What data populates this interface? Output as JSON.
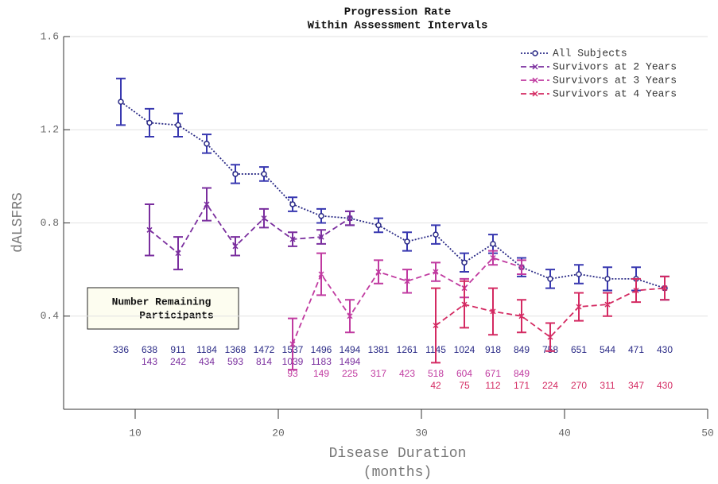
{
  "chart_data": {
    "type": "line",
    "title": [
      "Progression Rate",
      "Within Assessment Intervals"
    ],
    "ylabel": "dALSFRS",
    "xlabel": [
      "Disease Duration",
      "(months)"
    ],
    "annotation": [
      "Number Remaining",
      "Participants"
    ],
    "xlim": [
      5,
      50
    ],
    "xticks": [
      10,
      20,
      30,
      40,
      50
    ],
    "ylim": [
      0,
      1.6
    ],
    "yticks": [
      0.4,
      0.8,
      1.2,
      1.6
    ],
    "grid": true,
    "legend": "upper right",
    "series": [
      {
        "name": "All Subjects",
        "color": "#2a2a86",
        "error_color": "#3838b0",
        "line_style": "dotted",
        "marker": "o",
        "x": [
          9,
          11,
          13,
          15,
          17,
          19,
          21,
          23,
          25,
          27,
          29,
          31,
          33,
          35,
          37,
          39,
          41,
          43,
          45,
          47
        ],
        "values": [
          1.32,
          1.23,
          1.22,
          1.14,
          1.01,
          1.01,
          0.88,
          0.83,
          0.82,
          0.79,
          0.72,
          0.75,
          0.63,
          0.71,
          0.61,
          0.56,
          0.58,
          0.56,
          0.56,
          0.52
        ],
        "errors": [
          0.1,
          0.06,
          0.05,
          0.04,
          0.04,
          0.03,
          0.03,
          0.03,
          0.03,
          0.03,
          0.04,
          0.04,
          0.04,
          0.04,
          0.04,
          0.04,
          0.04,
          0.05,
          0.05,
          0.05
        ],
        "counts": [
          336,
          638,
          911,
          1184,
          1368,
          1472,
          1537,
          1496,
          1494,
          1381,
          1261,
          1145,
          1024,
          918,
          849,
          758,
          651,
          544,
          471,
          430
        ]
      },
      {
        "name": "Survivors at 2 Years",
        "color": "#7a2e9e",
        "error_color": "#7a2e9e",
        "line_style": "dashed",
        "marker": "x",
        "x": [
          11,
          13,
          15,
          17,
          19,
          21,
          23,
          25
        ],
        "values": [
          0.77,
          0.67,
          0.88,
          0.7,
          0.82,
          0.73,
          0.74,
          0.82
        ],
        "errors": [
          0.11,
          0.07,
          0.07,
          0.04,
          0.04,
          0.03,
          0.03,
          0.03
        ],
        "counts": [
          143,
          242,
          434,
          593,
          814,
          1039,
          1183,
          1494
        ]
      },
      {
        "name": "Survivors at 3 Years",
        "color": "#c03aa0",
        "error_color": "#c03aa0",
        "line_style": "dashed",
        "marker": "x",
        "x": [
          21,
          23,
          25,
          27,
          29,
          31,
          33,
          35,
          37
        ],
        "values": [
          0.28,
          0.58,
          0.4,
          0.59,
          0.55,
          0.59,
          0.52,
          0.65,
          0.61
        ],
        "errors": [
          0.11,
          0.09,
          0.07,
          0.05,
          0.05,
          0.04,
          0.04,
          0.03,
          0.03
        ],
        "counts": [
          93,
          149,
          225,
          317,
          423,
          518,
          604,
          671,
          849
        ]
      },
      {
        "name": "Survivors at 4 Years",
        "color": "#d42a62",
        "error_color": "#d42a62",
        "line_style": "dashed",
        "marker": "x",
        "x": [
          31,
          33,
          35,
          37,
          39,
          41,
          43,
          45,
          47
        ],
        "values": [
          0.36,
          0.45,
          0.42,
          0.4,
          0.31,
          0.44,
          0.45,
          0.51,
          0.52
        ],
        "errors": [
          0.16,
          0.1,
          0.1,
          0.07,
          0.06,
          0.06,
          0.05,
          0.05,
          0.05
        ],
        "counts": [
          42,
          75,
          112,
          171,
          224,
          270,
          311,
          347,
          430
        ]
      }
    ]
  }
}
